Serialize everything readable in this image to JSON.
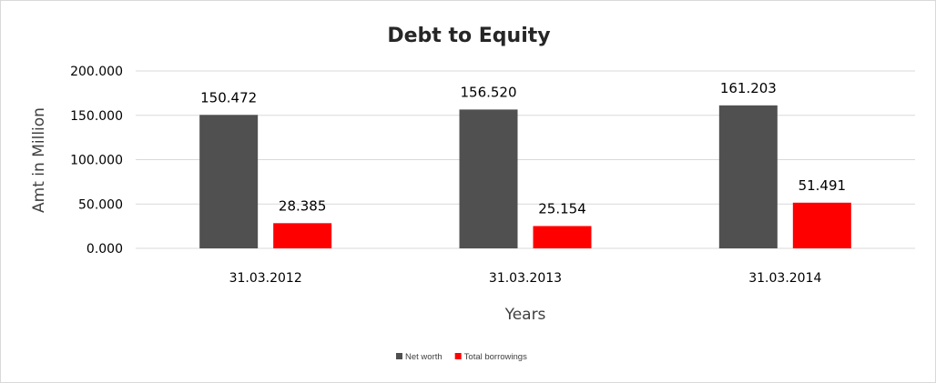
{
  "chart_data": {
    "type": "bar",
    "title": "Debt to Equity",
    "xlabel": "Years",
    "ylabel": "Amt in Million",
    "categories": [
      "31.03.2012",
      "31.03.2013",
      "31.03.2014"
    ],
    "series": [
      {
        "name": "Net worth",
        "values": [
          150.472,
          156.52,
          161.203
        ],
        "labels": [
          "150.472",
          "156.520",
          "161.203"
        ],
        "color": "#505050"
      },
      {
        "name": "Total borrowings",
        "values": [
          28.385,
          25.154,
          51.491
        ],
        "labels": [
          "28.385",
          "25.154",
          "51.491"
        ],
        "color": "#ff0000"
      }
    ],
    "yticks": [
      "0.000",
      "50.000",
      "100.000",
      "150.000",
      "200.000"
    ],
    "ylim": [
      0,
      200
    ],
    "grid": true,
    "legend": "bottom-center",
    "gridline_color": "#d9d9d9"
  }
}
